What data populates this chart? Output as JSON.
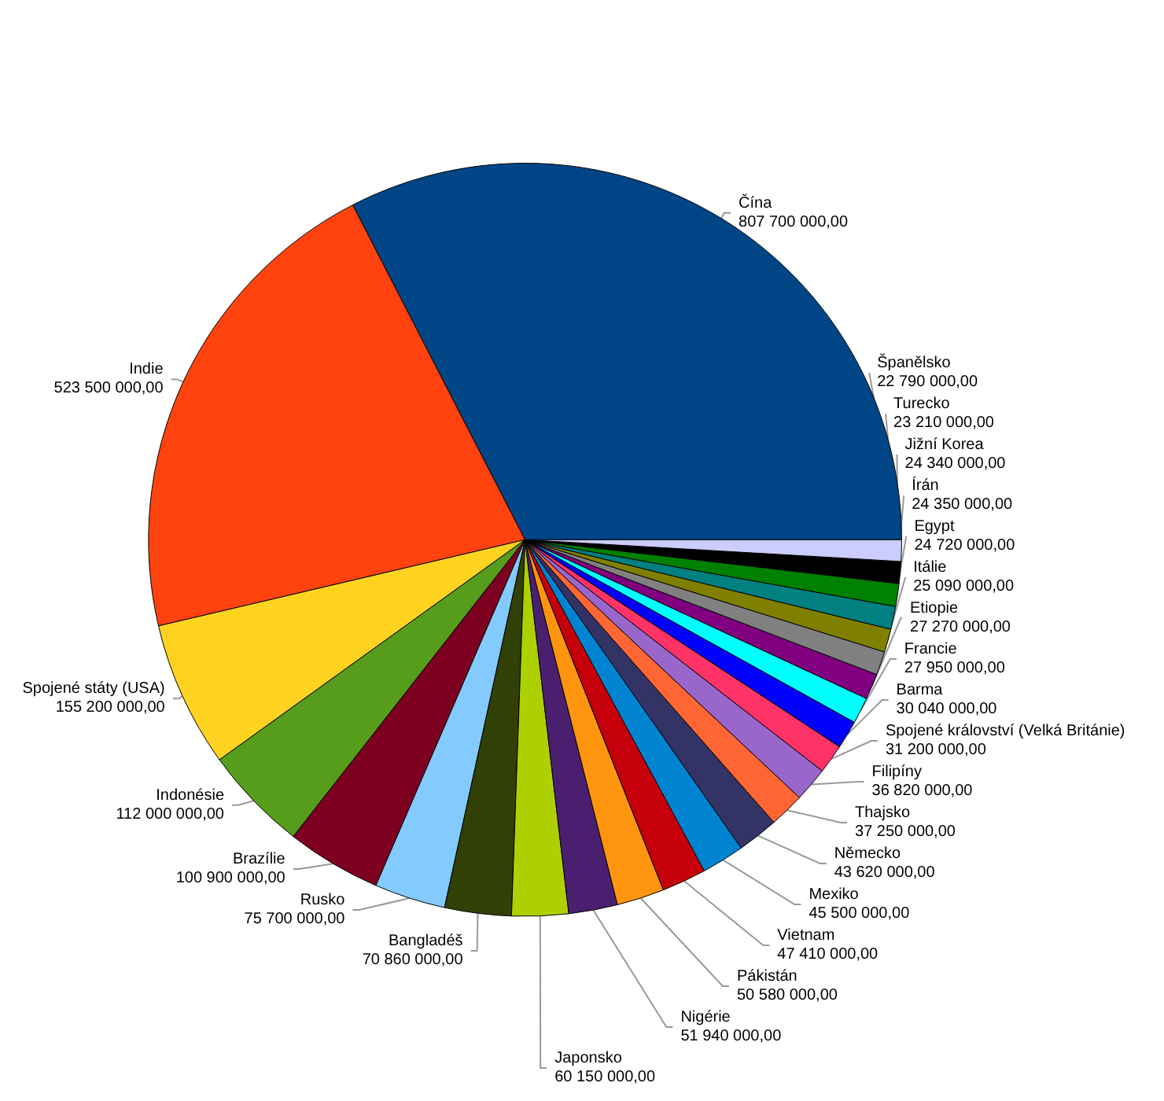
{
  "chart_data": {
    "type": "pie",
    "legend": false,
    "value_labels": [
      "807 700 000,00",
      "523 500 000,00",
      "155 200 000,00",
      "112 000 000,00",
      "100 900 000,00",
      "75 700 000,00",
      "70 860 000,00",
      "60 150 000,00",
      "51 940 000,00",
      "50 580 000,00",
      "47 410 000,00",
      "45 500 000,00",
      "43 620 000,00",
      "37 250 000,00",
      "36 820 000,00",
      "31 200 000,00",
      "30 040 000,00",
      "27 950 000,00",
      "27 270 000,00",
      "25 090 000,00",
      "24 720 000,00",
      "24 350 000,00",
      "24 340 000,00",
      "23 210 000,00",
      "22 790 000,00"
    ],
    "categories": [
      "Čína",
      "Indie",
      "Spojené státy (USA)",
      "Indonésie",
      "Brazílie",
      "Rusko",
      "Bangladéš",
      "Japonsko",
      "Nigérie",
      "Pákistán",
      "Vietnam",
      "Mexiko",
      "Německo",
      "Thajsko",
      "Filipíny",
      "Spojené království (Velká Británie)",
      "Barma",
      "Francie",
      "Etiopie",
      "Itálie",
      "Egypt",
      "Írán",
      "Jižní Korea",
      "Turecko",
      "Španělsko"
    ],
    "values": [
      807700000,
      523500000,
      155200000,
      112000000,
      100900000,
      75700000,
      70860000,
      60150000,
      51940000,
      50580000,
      47410000,
      45500000,
      43620000,
      37250000,
      36820000,
      31200000,
      30040000,
      27950000,
      27270000,
      25090000,
      24720000,
      24350000,
      24340000,
      23210000,
      22790000
    ],
    "colors": [
      "#004586",
      "#ff420e",
      "#ffd320",
      "#579d1c",
      "#7e0021",
      "#83caff",
      "#314004",
      "#aecf00",
      "#4b1f6f",
      "#ff950e",
      "#c5000b",
      "#0084d1",
      "#333366",
      "#ff6633",
      "#9966cc",
      "#ff3366",
      "#0000ff",
      "#00ffff",
      "#800080",
      "#808080",
      "#808000",
      "#008080",
      "#008000",
      "#000000",
      "#ccccff"
    ]
  }
}
